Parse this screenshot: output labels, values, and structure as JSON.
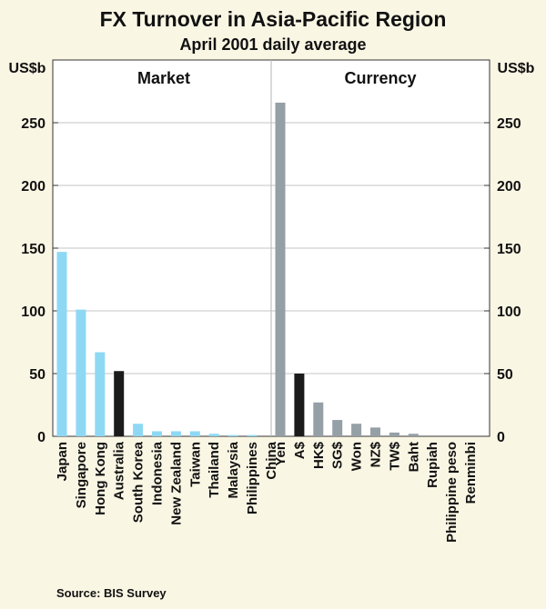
{
  "chart_data": {
    "type": "bar",
    "title": "FX Turnover in Asia-Pacific Region",
    "subtitle": "April 2001 daily average",
    "y_unit_left": "US$b",
    "y_unit_right": "US$b",
    "ylim": [
      0,
      300
    ],
    "yticks": [
      0,
      50,
      100,
      150,
      200,
      250
    ],
    "grid": true,
    "source": "Source: BIS Survey",
    "colors": {
      "default": "#8ed8f4",
      "highlight": "#1b1b1b",
      "currency": "#959fa6"
    },
    "panels": [
      {
        "label": "Market",
        "categories": [
          "Japan",
          "Singapore",
          "Hong Kong",
          "Australia",
          "South Korea",
          "Indonesia",
          "New Zealand",
          "Taiwan",
          "Thailand",
          "Malaysia",
          "Philippines",
          "China"
        ],
        "values": [
          147,
          101,
          67,
          52,
          10,
          4,
          4,
          4,
          2,
          1,
          1,
          0
        ],
        "highlight": "Australia"
      },
      {
        "label": "Currency",
        "categories": [
          "Yen",
          "A$",
          "HK$",
          "SG$",
          "Won",
          "NZ$",
          "TW$",
          "Baht",
          "Rupiah",
          "Philippine peso",
          "Renminbi"
        ],
        "values": [
          266,
          50,
          27,
          13,
          10,
          7,
          3,
          2,
          0,
          0,
          0
        ],
        "highlight": "A$"
      }
    ]
  }
}
